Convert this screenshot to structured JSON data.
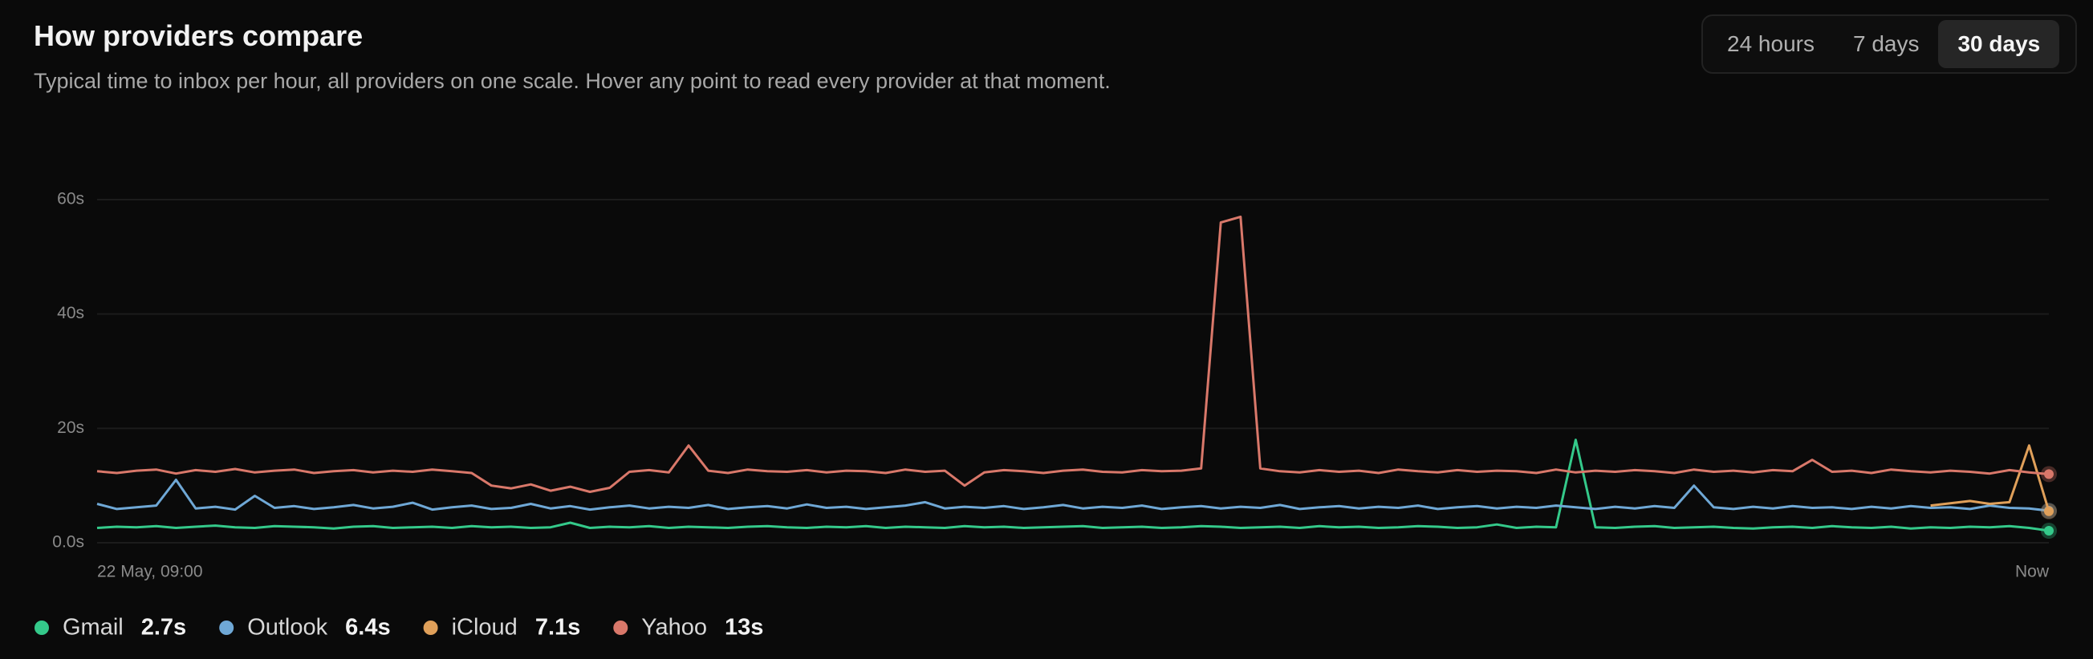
{
  "header": {
    "title": "How providers compare",
    "subtitle": "Typical time to inbox per hour, all providers on one scale. Hover any point to read every provider at that moment."
  },
  "range_picker": {
    "options": [
      "24 hours",
      "7 days",
      "30 days"
    ],
    "selected_index": 2
  },
  "chart_data": {
    "type": "line",
    "categories": [
      "22 May, 09:00",
      null,
      null,
      null,
      null,
      null,
      null,
      null,
      null,
      null,
      null,
      null,
      null,
      null,
      null,
      null,
      null,
      null,
      null,
      null,
      null,
      null,
      null,
      null,
      null,
      null,
      null,
      null,
      null,
      null,
      null,
      null,
      null,
      null,
      null,
      null,
      null,
      null,
      null,
      null,
      null,
      null,
      null,
      null,
      null,
      null,
      null,
      null,
      null,
      null,
      null,
      null,
      null,
      null,
      null,
      null,
      null,
      null,
      null,
      null,
      null,
      null,
      null,
      null,
      null,
      null,
      null,
      null,
      null,
      null,
      null,
      null,
      null,
      null,
      null,
      null,
      null,
      null,
      null,
      null,
      null,
      null,
      null,
      null,
      null,
      null,
      null,
      null,
      null,
      null,
      null,
      null,
      null,
      null,
      null,
      null,
      null,
      null,
      null,
      "Now"
    ],
    "ylim": [
      0,
      60
    ],
    "yticks": [
      {
        "value": 0,
        "label": "0.0s"
      },
      {
        "value": 20,
        "label": "20s"
      },
      {
        "value": 40,
        "label": "40s"
      },
      {
        "value": 60,
        "label": "60s"
      }
    ],
    "grid": true,
    "series": [
      {
        "name": "Gmail",
        "color": "#34c98a",
        "summary": 2.7,
        "summary_label": "2.7s",
        "values": [
          2.6,
          2.8,
          2.7,
          2.9,
          2.6,
          2.8,
          3.0,
          2.7,
          2.6,
          2.9,
          2.8,
          2.7,
          2.5,
          2.8,
          2.9,
          2.6,
          2.7,
          2.8,
          2.6,
          2.9,
          2.7,
          2.8,
          2.6,
          2.7,
          3.5,
          2.6,
          2.8,
          2.7,
          2.9,
          2.6,
          2.8,
          2.7,
          2.6,
          2.8,
          2.9,
          2.7,
          2.6,
          2.8,
          2.7,
          2.9,
          2.6,
          2.8,
          2.7,
          2.6,
          2.9,
          2.7,
          2.8,
          2.6,
          2.7,
          2.8,
          2.9,
          2.6,
          2.7,
          2.8,
          2.6,
          2.7,
          2.9,
          2.8,
          2.6,
          2.7,
          2.8,
          2.6,
          2.9,
          2.7,
          2.8,
          2.6,
          2.7,
          2.9,
          2.8,
          2.6,
          2.7,
          3.2,
          2.6,
          2.8,
          2.7,
          18.0,
          2.7,
          2.6,
          2.8,
          2.9,
          2.6,
          2.7,
          2.8,
          2.6,
          2.5,
          2.7,
          2.8,
          2.6,
          2.9,
          2.7,
          2.6,
          2.8,
          2.5,
          2.7,
          2.6,
          2.8,
          2.7,
          2.9,
          2.6,
          2.1
        ]
      },
      {
        "name": "Outlook",
        "color": "#6fa8d6",
        "summary": 6.4,
        "summary_label": "6.4s",
        "values": [
          6.8,
          5.9,
          6.2,
          6.5,
          11.0,
          6.0,
          6.3,
          5.8,
          8.2,
          6.1,
          6.4,
          5.9,
          6.2,
          6.6,
          6.0,
          6.3,
          7.0,
          5.8,
          6.2,
          6.5,
          5.9,
          6.1,
          6.8,
          6.0,
          6.4,
          5.8,
          6.2,
          6.5,
          6.0,
          6.3,
          6.1,
          6.6,
          5.9,
          6.2,
          6.4,
          6.0,
          6.7,
          6.1,
          6.3,
          5.9,
          6.2,
          6.5,
          7.1,
          6.0,
          6.3,
          6.1,
          6.4,
          5.9,
          6.2,
          6.6,
          6.0,
          6.3,
          6.1,
          6.5,
          5.9,
          6.2,
          6.4,
          6.0,
          6.3,
          6.1,
          6.6,
          5.9,
          6.2,
          6.4,
          6.0,
          6.3,
          6.1,
          6.5,
          5.9,
          6.2,
          6.4,
          6.0,
          6.3,
          6.1,
          6.5,
          6.2,
          5.9,
          6.3,
          6.0,
          6.4,
          6.1,
          10.0,
          6.2,
          5.9,
          6.3,
          6.0,
          6.4,
          6.1,
          6.2,
          5.9,
          6.3,
          6.0,
          6.4,
          6.1,
          6.2,
          5.9,
          6.5,
          6.1,
          6.0,
          5.6
        ]
      },
      {
        "name": "iCloud",
        "color": "#e0a05a",
        "summary": 7.1,
        "summary_label": "7.1s",
        "values": [
          null,
          null,
          null,
          null,
          null,
          null,
          null,
          null,
          null,
          null,
          null,
          null,
          null,
          null,
          null,
          null,
          null,
          null,
          null,
          null,
          null,
          null,
          null,
          null,
          null,
          null,
          null,
          null,
          null,
          null,
          null,
          null,
          null,
          null,
          null,
          null,
          null,
          null,
          null,
          null,
          null,
          null,
          null,
          null,
          null,
          null,
          null,
          null,
          null,
          null,
          null,
          null,
          null,
          null,
          null,
          null,
          null,
          null,
          null,
          null,
          null,
          null,
          null,
          null,
          null,
          null,
          null,
          null,
          null,
          null,
          null,
          null,
          null,
          null,
          null,
          null,
          null,
          null,
          null,
          null,
          null,
          null,
          null,
          null,
          null,
          null,
          null,
          null,
          null,
          null,
          null,
          null,
          null,
          6.5,
          6.9,
          7.3,
          6.8,
          7.1,
          17.0,
          5.5
        ]
      },
      {
        "name": "Yahoo",
        "color": "#d9786a",
        "summary": 13,
        "summary_label": "13s",
        "values": [
          12.5,
          12.2,
          12.6,
          12.8,
          12.1,
          12.7,
          12.4,
          12.9,
          12.3,
          12.6,
          12.8,
          12.2,
          12.5,
          12.7,
          12.3,
          12.6,
          12.4,
          12.8,
          12.5,
          12.2,
          10.0,
          9.5,
          10.2,
          9.1,
          9.8,
          8.9,
          9.6,
          12.4,
          12.7,
          12.3,
          17.0,
          12.6,
          12.2,
          12.8,
          12.5,
          12.4,
          12.7,
          12.3,
          12.6,
          12.5,
          12.2,
          12.8,
          12.4,
          12.6,
          10.0,
          12.3,
          12.7,
          12.5,
          12.2,
          12.6,
          12.8,
          12.4,
          12.3,
          12.7,
          12.5,
          12.6,
          13.0,
          56.0,
          57.0,
          13.0,
          12.5,
          12.3,
          12.7,
          12.4,
          12.6,
          12.2,
          12.8,
          12.5,
          12.3,
          12.7,
          12.4,
          12.6,
          12.5,
          12.2,
          12.8,
          12.3,
          12.6,
          12.4,
          12.7,
          12.5,
          12.2,
          12.8,
          12.4,
          12.6,
          12.3,
          12.7,
          12.5,
          14.5,
          12.4,
          12.6,
          12.2,
          12.8,
          12.5,
          12.3,
          12.6,
          12.4,
          12.1,
          12.7,
          12.3,
          12.0
        ]
      }
    ]
  }
}
